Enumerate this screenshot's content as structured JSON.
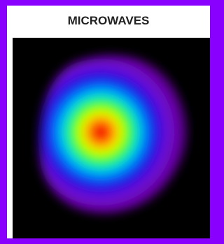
{
  "header": {
    "title": "MICROWAVES"
  }
}
